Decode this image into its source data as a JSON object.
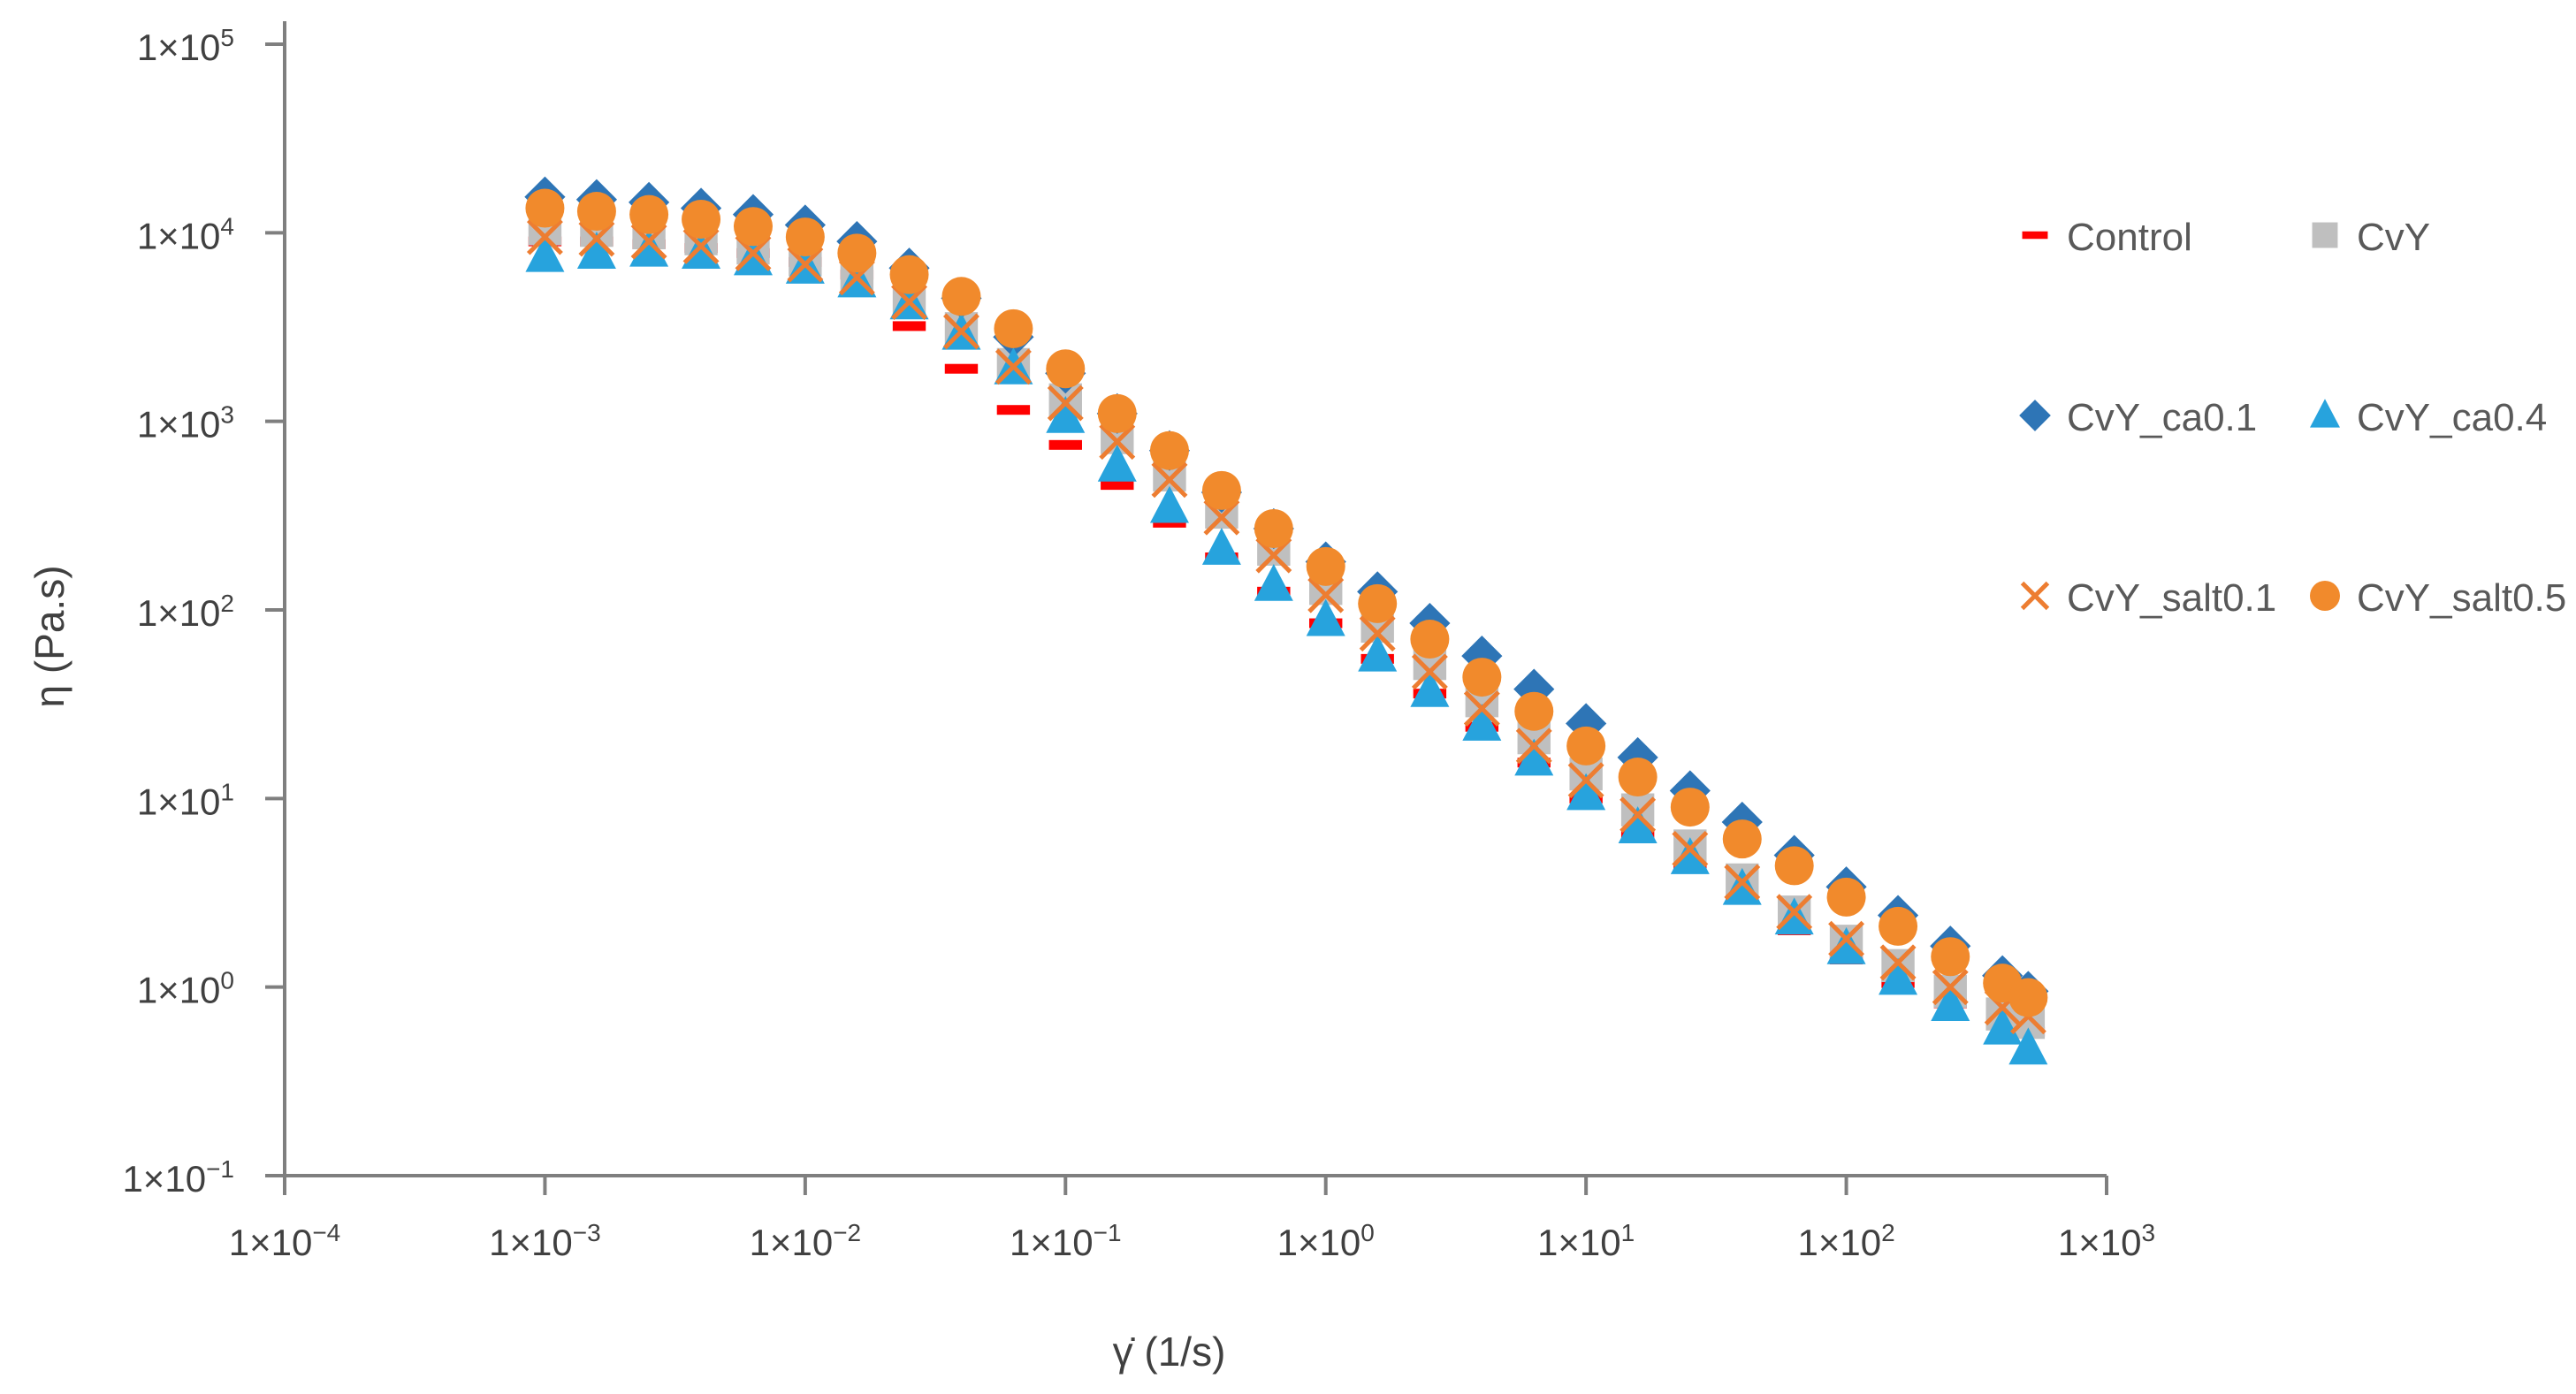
{
  "chart_data": {
    "type": "scatter",
    "title": "",
    "xlabel": "γ̇ (1/s)",
    "ylabel": "η (Pa.s)",
    "x_scale": "log",
    "y_scale": "log",
    "xlim": [
      0.0001,
      1000
    ],
    "ylim": [
      0.1,
      100000
    ],
    "x_ticks": [
      {
        "value": 0.0001,
        "base": "1×10",
        "exp": "−4"
      },
      {
        "value": 0.001,
        "base": "1×10",
        "exp": "−3"
      },
      {
        "value": 0.01,
        "base": "1×10",
        "exp": "−2"
      },
      {
        "value": 0.1,
        "base": "1×10",
        "exp": "−1"
      },
      {
        "value": 1,
        "base": "1×10",
        "exp": "0"
      },
      {
        "value": 10,
        "base": "1×10",
        "exp": "1"
      },
      {
        "value": 100,
        "base": "1×10",
        "exp": "2"
      },
      {
        "value": 1000,
        "base": "1×10",
        "exp": "3"
      }
    ],
    "y_ticks": [
      {
        "value": 0.1,
        "base": "1×10",
        "exp": "−1"
      },
      {
        "value": 1,
        "base": "1×10",
        "exp": "0"
      },
      {
        "value": 10,
        "base": "1×10",
        "exp": "1"
      },
      {
        "value": 100,
        "base": "1×10",
        "exp": "2"
      },
      {
        "value": 1000,
        "base": "1×10",
        "exp": "3"
      },
      {
        "value": 10000,
        "base": "1×10",
        "exp": "4"
      },
      {
        "value": 100000,
        "base": "1×10",
        "exp": "5"
      }
    ],
    "grid": false,
    "legend_position": "right",
    "x": [
      0.001,
      0.00158,
      0.00251,
      0.00398,
      0.00631,
      0.01,
      0.0158,
      0.0251,
      0.0398,
      0.0631,
      0.1,
      0.158,
      0.251,
      0.398,
      0.631,
      1,
      1.58,
      2.51,
      3.98,
      6.31,
      10,
      15.8,
      25.1,
      39.8,
      63.1,
      100,
      158,
      251,
      398,
      500
    ],
    "series": [
      {
        "name": "Control",
        "marker": "dash",
        "color": "#ff0000",
        "values": [
          9000,
          9000,
          8700,
          8300,
          7800,
          7000,
          6000,
          3200,
          1900,
          1150,
          750,
          460,
          290,
          190,
          125,
          85,
          55,
          36,
          24,
          15.5,
          10,
          6.5,
          4.3,
          2.9,
          2,
          1.4,
          1.05,
          0.82,
          0.65,
          0.58
        ]
      },
      {
        "name": "CvY",
        "marker": "square",
        "color": "#bfbfbf",
        "values": [
          10500,
          10300,
          10000,
          9300,
          8300,
          7200,
          6000,
          4500,
          3100,
          2000,
          1300,
          820,
          520,
          330,
          210,
          130,
          82,
          52,
          33,
          21,
          13.5,
          8.7,
          5.6,
          3.7,
          2.5,
          1.75,
          1.3,
          0.95,
          0.72,
          0.65
        ]
      },
      {
        "name": "CvY_ca0.1",
        "marker": "diamond",
        "color": "#2e75b6",
        "values": [
          15500,
          15000,
          14500,
          13500,
          12500,
          11000,
          9000,
          6500,
          4500,
          2800,
          1800,
          1100,
          700,
          420,
          270,
          180,
          125,
          85,
          57,
          38,
          25,
          16.5,
          11,
          7.5,
          5,
          3.4,
          2.4,
          1.65,
          1.15,
          0.95
        ]
      },
      {
        "name": "CvY_ca0.4",
        "marker": "triangle",
        "color": "#27a3dd",
        "values": [
          7500,
          7800,
          8000,
          7800,
          7200,
          6500,
          5500,
          4200,
          2900,
          1900,
          1050,
          580,
          350,
          210,
          135,
          88,
          57,
          37,
          24.5,
          16,
          10.5,
          7,
          4.8,
          3.3,
          2.3,
          1.6,
          1.1,
          0.8,
          0.6,
          0.47
        ]
      },
      {
        "name": "CvY_salt0.1",
        "marker": "x",
        "color": "#ed7d31",
        "values": [
          9500,
          9300,
          9000,
          8500,
          7800,
          6800,
          5800,
          4300,
          3000,
          1950,
          1250,
          780,
          490,
          310,
          195,
          120,
          75,
          47,
          30,
          19,
          12.5,
          8.2,
          5.4,
          3.6,
          2.5,
          1.8,
          1.35,
          1.0,
          0.78,
          0.7
        ]
      },
      {
        "name": "CvY_salt0.5",
        "marker": "circle",
        "color": "#f18a2c",
        "values": [
          13500,
          13000,
          12500,
          11800,
          10800,
          9500,
          7800,
          6000,
          4600,
          3100,
          1900,
          1100,
          700,
          430,
          270,
          170,
          108,
          70,
          44,
          29,
          19,
          13,
          9,
          6.1,
          4.4,
          3.0,
          2.1,
          1.45,
          1.05,
          0.88
        ]
      }
    ]
  }
}
